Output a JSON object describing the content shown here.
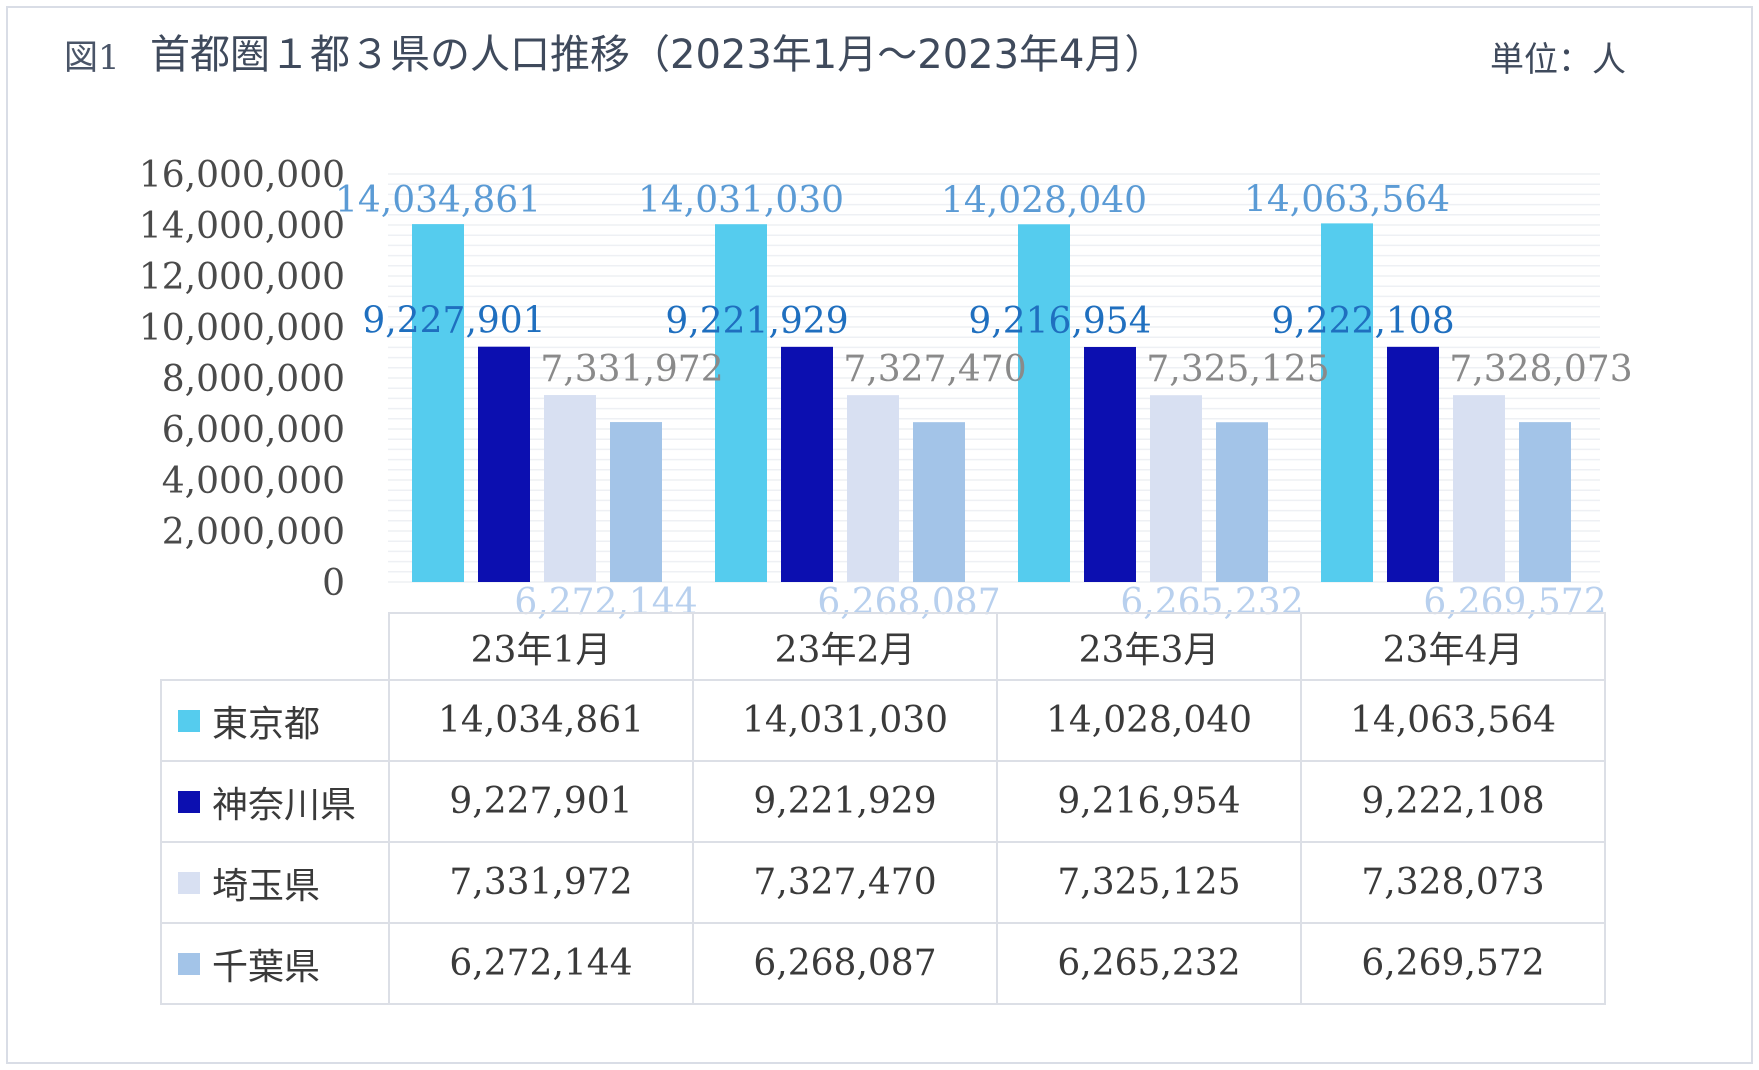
{
  "figure_label": "図1",
  "title": "首都圏１都３県の人口推移（2023年1月～2023年4月）",
  "unit_label": "単位：人",
  "chart_data": {
    "type": "bar",
    "categories": [
      "23年1月",
      "23年2月",
      "23年3月",
      "23年4月"
    ],
    "ylim": [
      0,
      16000000
    ],
    "yticks": [
      "16,000,000",
      "14,000,000",
      "12,000,000",
      "10,000,000",
      "8,000,000",
      "6,000,000",
      "4,000,000",
      "2,000,000",
      "0"
    ],
    "ytick_values": [
      16000000,
      14000000,
      12000000,
      10000000,
      8000000,
      6000000,
      4000000,
      2000000,
      0
    ],
    "grid": true,
    "legend": "table-below",
    "series": [
      {
        "name": "東京都",
        "color": "#55ccee",
        "label_color": "#5b9bd5",
        "values": [
          14034861,
          14031030,
          14028040,
          14063564
        ],
        "labels": [
          "14,034,861",
          "14,031,030",
          "14,028,040",
          "14,063,564"
        ]
      },
      {
        "name": "神奈川県",
        "color": "#0c0fb0",
        "label_color": "#1f6fbf",
        "values": [
          9227901,
          9221929,
          9216954,
          9222108
        ],
        "labels": [
          "9,227,901",
          "9,221,929",
          "9,216,954",
          "9,222,108"
        ]
      },
      {
        "name": "埼玉県",
        "color": "#d8e0f2",
        "label_color": "#8a8a8a",
        "values": [
          7331972,
          7327470,
          7325125,
          7328073
        ],
        "labels": [
          "7,331,972",
          "7,327,470",
          "7,325,125",
          "7,328,073"
        ]
      },
      {
        "name": "千葉県",
        "color": "#a3c4e8",
        "label_color": "#b8d0ee",
        "values": [
          6272144,
          6268087,
          6265232,
          6269572
        ],
        "labels": [
          "6,272,144",
          "6,268,087",
          "6,265,232",
          "6,269,572"
        ]
      }
    ]
  }
}
